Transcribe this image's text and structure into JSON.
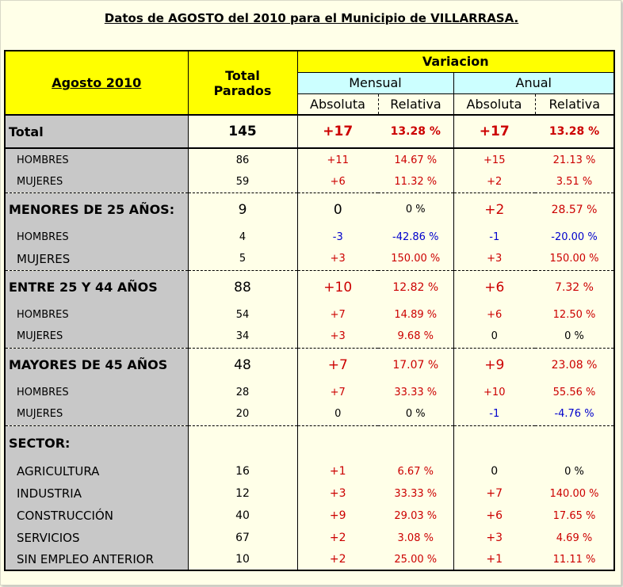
{
  "title": "Datos de AGOSTO del 2010 para el Municipio de VILLARRASA.",
  "header": {
    "period": "Agosto 2010",
    "total_parados_l1": "Total",
    "total_parados_l2": "Parados",
    "variacion": "Variacion",
    "mensual": "Mensual",
    "anual": "Anual",
    "absoluta": "Absoluta",
    "relativa": "Relativa"
  },
  "rows": {
    "total": {
      "label": "Total",
      "total": "145",
      "m_abs": "+17",
      "m_rel": "13.28 %",
      "a_abs": "+17",
      "a_rel": "13.28 %"
    },
    "t_h": {
      "label": "HOMBRES",
      "total": "86",
      "m_abs": "+11",
      "m_rel": "14.67 %",
      "a_abs": "+15",
      "a_rel": "21.13 %"
    },
    "t_m": {
      "label": "MUJERES",
      "total": "59",
      "m_abs": "+6",
      "m_rel": "11.32 %",
      "a_abs": "+2",
      "a_rel": "3.51 %"
    },
    "menores": {
      "label": "MENORES DE 25 AÑOS:",
      "total": "9",
      "m_abs": "0",
      "m_rel": "0 %",
      "a_abs": "+2",
      "a_rel": "28.57 %"
    },
    "men_h": {
      "label": "HOMBRES",
      "total": "4",
      "m_abs": "-3",
      "m_rel": "-42.86 %",
      "a_abs": "-1",
      "a_rel": "-20.00 %"
    },
    "men_m": {
      "label": "MUJERES",
      "total": "5",
      "m_abs": "+3",
      "m_rel": "150.00 %",
      "a_abs": "+3",
      "a_rel": "150.00 %"
    },
    "entre": {
      "label": "ENTRE 25 Y 44 AÑOS",
      "total": "88",
      "m_abs": "+10",
      "m_rel": "12.82 %",
      "a_abs": "+6",
      "a_rel": "7.32 %"
    },
    "ent_h": {
      "label": "HOMBRES",
      "total": "54",
      "m_abs": "+7",
      "m_rel": "14.89 %",
      "a_abs": "+6",
      "a_rel": "12.50 %"
    },
    "ent_m": {
      "label": "MUJERES",
      "total": "34",
      "m_abs": "+3",
      "m_rel": "9.68 %",
      "a_abs": "0",
      "a_rel": "0 %"
    },
    "mayores": {
      "label": "MAYORES DE 45 AÑOS",
      "total": "48",
      "m_abs": "+7",
      "m_rel": "17.07 %",
      "a_abs": "+9",
      "a_rel": "23.08 %"
    },
    "may_h": {
      "label": "HOMBRES",
      "total": "28",
      "m_abs": "+7",
      "m_rel": "33.33 %",
      "a_abs": "+10",
      "a_rel": "55.56 %"
    },
    "may_m": {
      "label": "MUJERES",
      "total": "20",
      "m_abs": "0",
      "m_rel": "0 %",
      "a_abs": "-1",
      "a_rel": "-4.76 %"
    },
    "sector": {
      "label": "SECTOR:"
    },
    "agri": {
      "label": "AGRICULTURA",
      "total": "16",
      "m_abs": "+1",
      "m_rel": "6.67 %",
      "a_abs": "0",
      "a_rel": "0 %"
    },
    "indu": {
      "label": "INDUSTRIA",
      "total": "12",
      "m_abs": "+3",
      "m_rel": "33.33 %",
      "a_abs": "+7",
      "a_rel": "140.00 %"
    },
    "cons": {
      "label": "CONSTRUCCIÓN",
      "total": "40",
      "m_abs": "+9",
      "m_rel": "29.03 %",
      "a_abs": "+6",
      "a_rel": "17.65 %"
    },
    "serv": {
      "label": "SERVICIOS",
      "total": "67",
      "m_abs": "+2",
      "m_rel": "3.08 %",
      "a_abs": "+3",
      "a_rel": "4.69 %"
    },
    "sin": {
      "label": "SIN EMPLEO ANTERIOR",
      "total": "10",
      "m_abs": "+2",
      "m_rel": "25.00 %",
      "a_abs": "+1",
      "a_rel": "11.11 %"
    }
  },
  "colors": {
    "header_bg": "#ffff00",
    "subheader_bg": "#ccffff",
    "label_bg": "#c8c8c8",
    "positive": "#cc0000",
    "negative": "#0000cc"
  }
}
